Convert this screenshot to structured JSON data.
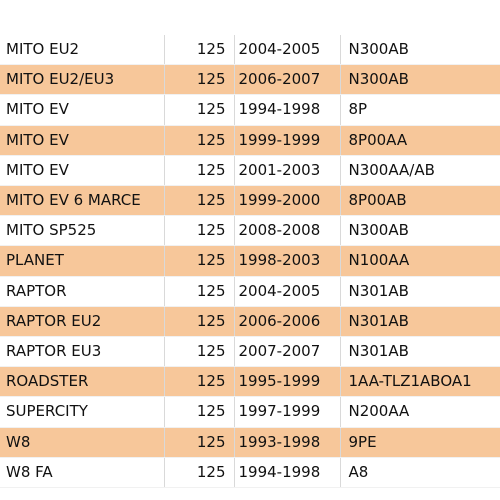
{
  "table": {
    "rows": [
      {
        "model": "MITO EU2",
        "cc": "125",
        "years": "2004-2005",
        "code": "N300AB"
      },
      {
        "model": "MITO EU2/EU3",
        "cc": "125",
        "years": "2006-2007",
        "code": "N300AB"
      },
      {
        "model": "MITO EV",
        "cc": "125",
        "years": "1994-1998",
        "code": "8P"
      },
      {
        "model": "MITO EV",
        "cc": "125",
        "years": "1999-1999",
        "code": "8P00AA"
      },
      {
        "model": "MITO EV",
        "cc": "125",
        "years": "2001-2003",
        "code": "N300AA/AB"
      },
      {
        "model": "MITO EV 6 MARCE",
        "cc": "125",
        "years": "1999-2000",
        "code": "8P00AB"
      },
      {
        "model": "MITO SP525",
        "cc": "125",
        "years": "2008-2008",
        "code": "N300AB"
      },
      {
        "model": "PLANET",
        "cc": "125",
        "years": "1998-2003",
        "code": "N100AA"
      },
      {
        "model": "RAPTOR",
        "cc": "125",
        "years": "2004-2005",
        "code": "N301AB"
      },
      {
        "model": "RAPTOR EU2",
        "cc": "125",
        "years": "2006-2006",
        "code": "N301AB"
      },
      {
        "model": "RAPTOR EU3",
        "cc": "125",
        "years": "2007-2007",
        "code": "N301AB"
      },
      {
        "model": "ROADSTER",
        "cc": "125",
        "years": "1995-1999",
        "code": "1AA-TLZ1ABOA1"
      },
      {
        "model": "SUPERCITY",
        "cc": "125",
        "years": "1997-1999",
        "code": "N200AA"
      },
      {
        "model": "W8",
        "cc": "125",
        "years": "1993-1998",
        "code": "9PE"
      },
      {
        "model": "W8 FA",
        "cc": "125",
        "years": "1994-1998",
        "code": "A8"
      }
    ]
  },
  "colors": {
    "alt_row": "#f7c79a",
    "row": "#ffffff"
  }
}
